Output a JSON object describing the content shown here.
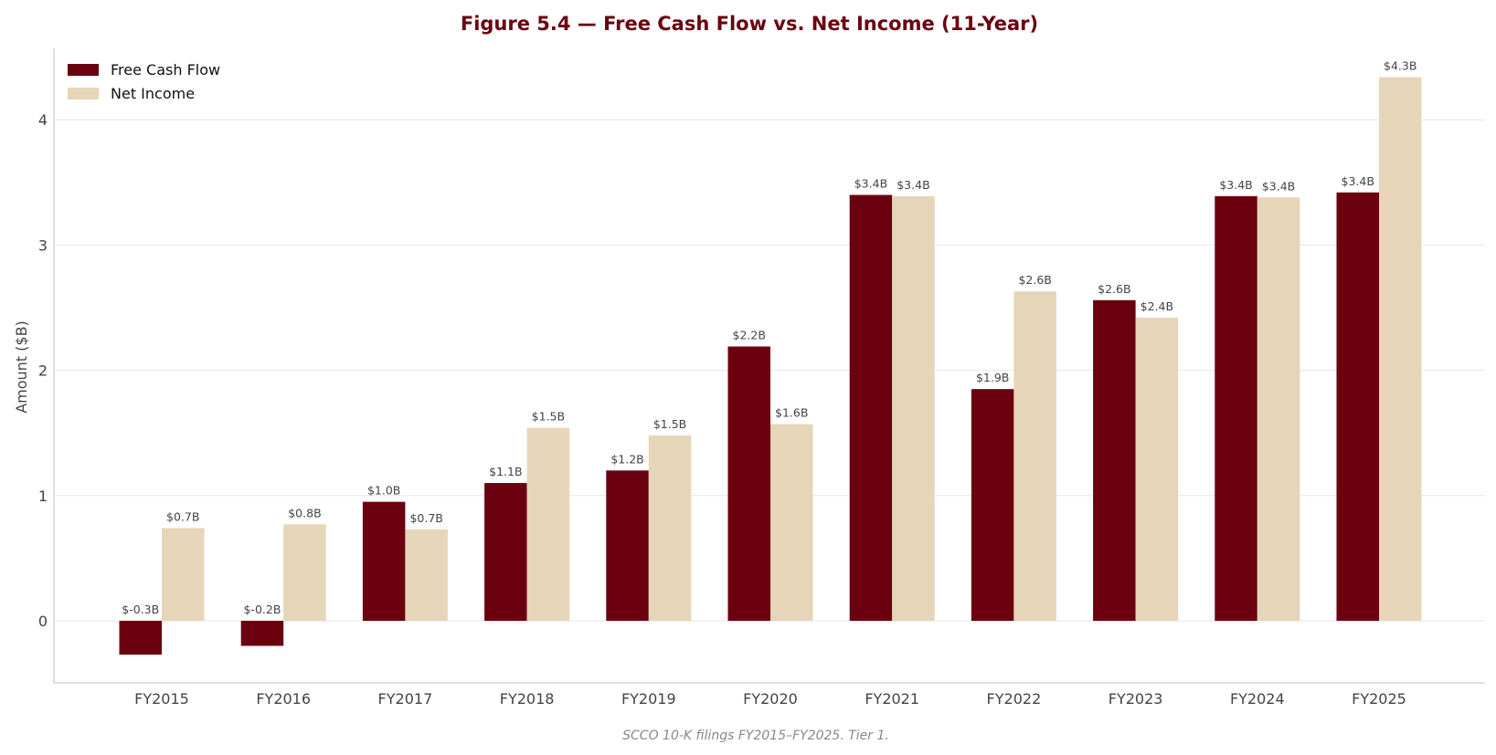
{
  "chart_data": {
    "type": "bar",
    "title": "Figure 5.4 — Free Cash Flow vs. Net Income (11-Year)",
    "ylabel": "Amount ($B)",
    "xlabel": "",
    "caption": "SCCO 10-K filings FY2015–FY2025. Tier 1.",
    "categories": [
      "FY2015",
      "FY2016",
      "FY2017",
      "FY2018",
      "FY2019",
      "FY2020",
      "FY2021",
      "FY2022",
      "FY2023",
      "FY2024",
      "FY2025"
    ],
    "series": [
      {
        "name": "Free Cash Flow",
        "color": "#6b000e",
        "values": [
          -0.27,
          -0.2,
          0.95,
          1.1,
          1.2,
          2.19,
          3.4,
          1.85,
          2.56,
          3.39,
          3.42
        ],
        "labels": [
          "$-0.3B",
          "$-0.2B",
          "$1.0B",
          "$1.1B",
          "$1.2B",
          "$2.2B",
          "$3.4B",
          "$1.9B",
          "$2.6B",
          "$3.4B",
          "$3.4B"
        ]
      },
      {
        "name": "Net Income",
        "color": "#e6d5b8",
        "values": [
          0.74,
          0.77,
          0.73,
          1.54,
          1.48,
          1.57,
          3.39,
          2.63,
          2.42,
          3.38,
          4.34
        ],
        "labels": [
          "$0.7B",
          "$0.8B",
          "$0.7B",
          "$1.5B",
          "$1.5B",
          "$1.6B",
          "$3.4B",
          "$2.6B",
          "$2.4B",
          "$3.4B",
          "$4.3B"
        ]
      }
    ],
    "yticks": [
      "0",
      "1",
      "2",
      "3",
      "4"
    ],
    "ytick_values": [
      0,
      1,
      2,
      3,
      4
    ],
    "ylim": [
      -0.5,
      4.55
    ],
    "grid": "horizontal",
    "legend_position": "top-left"
  }
}
